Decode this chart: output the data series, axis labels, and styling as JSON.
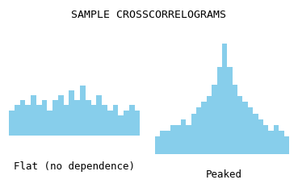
{
  "title": "SAMPLE CROSSCORRELOGRAMS",
  "title_fontsize": 9.5,
  "bar_color": "#87CEEB",
  "background_color": "#ffffff",
  "flat_label": "Flat (no dependence)",
  "peaked_label": "Peaked",
  "label_fontsize": 9,
  "flat_bars": [
    5,
    6,
    7,
    6,
    8,
    6,
    7,
    5,
    7,
    8,
    6,
    9,
    7,
    10,
    7,
    6,
    8,
    6,
    5,
    6,
    4,
    5,
    6,
    5
  ],
  "peaked_bars": [
    3,
    4,
    4,
    5,
    5,
    6,
    5,
    7,
    8,
    9,
    10,
    12,
    15,
    19,
    15,
    12,
    10,
    9,
    8,
    7,
    6,
    5,
    4,
    5,
    4,
    3
  ],
  "flat_ylim": [
    0,
    18
  ],
  "peaked_ylim": [
    0,
    22
  ]
}
